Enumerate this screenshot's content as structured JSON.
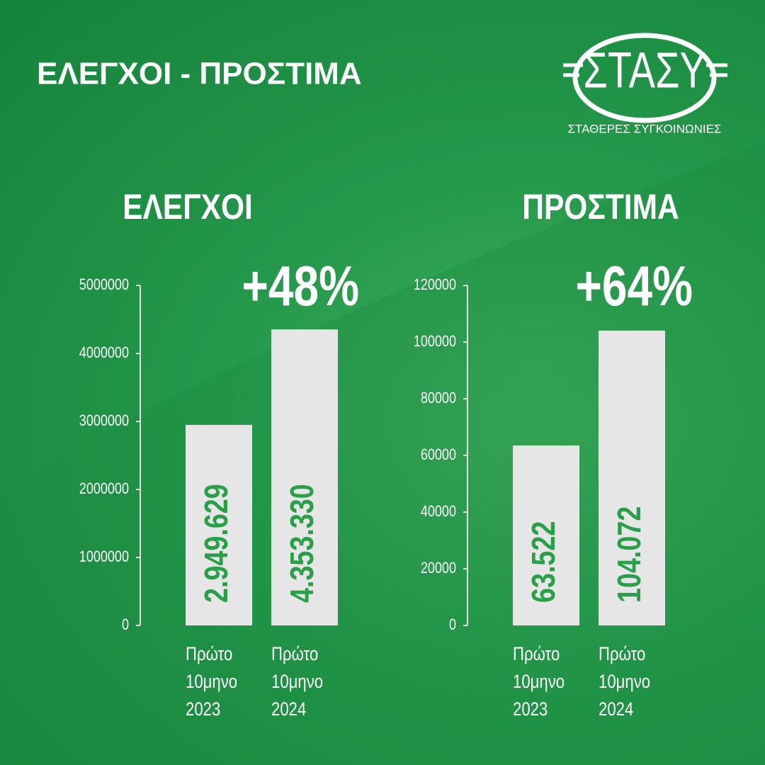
{
  "header": {
    "title": "ΕΛΕΓΧΟΙ - ΠΡΟΣΤΙΜΑ",
    "logo": "ΣΤΑΣΥ",
    "logo_subtitle": "ΣΤΑΘΕΡΕΣ ΣΥΓΚΟΙΝΩΝΙΕΣ"
  },
  "chart_data": [
    {
      "type": "bar",
      "title": "ΕΛΕΓΧΟΙ",
      "annotation": "+48%",
      "categories": [
        "Πρώτο 10μηνο 2023",
        "Πρώτο 10μηνο 2024"
      ],
      "values": [
        2949629,
        4353330
      ],
      "value_labels": [
        "2.949.629",
        "4.353.330"
      ],
      "color": "#e6e6e6",
      "label_color": "#27a048",
      "ylim": [
        0,
        5000000
      ],
      "yticks": [
        0,
        1000000,
        2000000,
        3000000,
        4000000,
        5000000
      ]
    },
    {
      "type": "bar",
      "title": "ΠΡΟΣΤΙΜΑ",
      "annotation": "+64%",
      "categories": [
        "Πρώτο 10μηνο 2023",
        "Πρώτο 10μηνο 2024"
      ],
      "values": [
        63522,
        104072
      ],
      "value_labels": [
        "63.522",
        "104.072"
      ],
      "color": "#e6e6e6",
      "label_color": "#27a048",
      "ylim": [
        0,
        120000
      ],
      "yticks": [
        0,
        20000,
        40000,
        60000,
        80000,
        100000,
        120000
      ]
    }
  ]
}
